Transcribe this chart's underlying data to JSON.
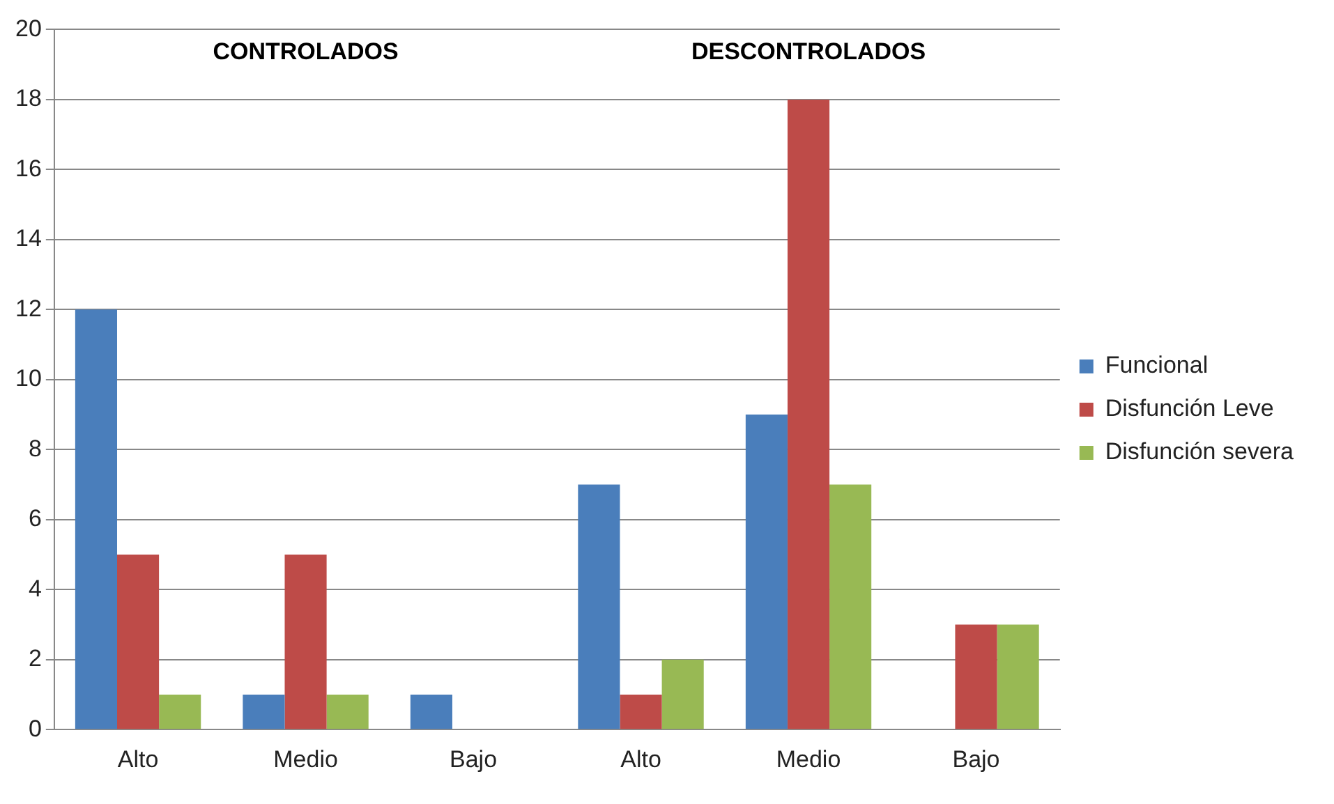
{
  "chart_data": {
    "type": "bar",
    "categories": [
      "Alto",
      "Medio",
      "Bajo",
      "Alto",
      "Medio",
      "Bajo"
    ],
    "series": [
      {
        "name": "Funcional",
        "color": "#4a7ebb",
        "values": [
          12,
          1,
          1,
          7,
          9,
          0
        ]
      },
      {
        "name": "Disfunción Leve",
        "color": "#be4b48",
        "values": [
          5,
          5,
          0,
          1,
          18,
          3
        ]
      },
      {
        "name": "Disfunción severa",
        "color": "#98b954",
        "values": [
          1,
          1,
          0,
          2,
          7,
          3
        ]
      }
    ],
    "ylim": [
      0,
      20
    ],
    "yticks": [
      0,
      2,
      4,
      6,
      8,
      10,
      12,
      14,
      16,
      18,
      20
    ],
    "grid": "y",
    "legend": "right",
    "annotations": [
      "CONTROLADOS",
      "DESCONTROLADOS"
    ]
  }
}
